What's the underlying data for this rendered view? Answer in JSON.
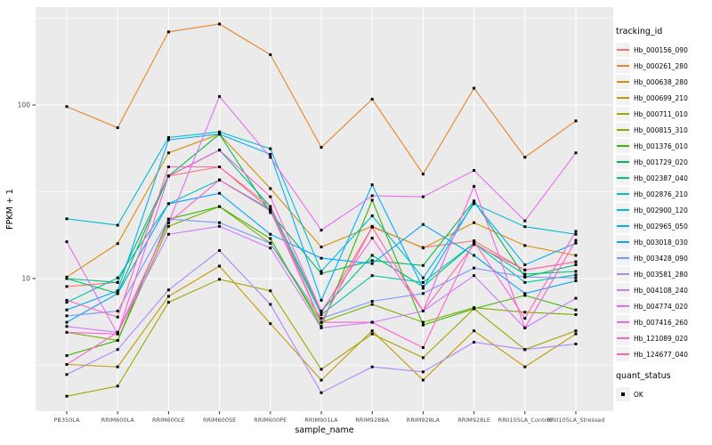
{
  "figure": {
    "background": "#FFFFFF",
    "panel_background": "#EBEBEB",
    "grid_color": "#FFFFFF",
    "tick_color": "#333333",
    "tick_label_color": "#4D4D4D",
    "axis_title_color": "#000000",
    "point_color": "#000000"
  },
  "chart_data": {
    "type": "line",
    "title": "",
    "xlabel": "sample_name",
    "ylabel": "FPKM + 1",
    "y_scale": "log10",
    "ylim": [
      1.72,
      366
    ],
    "y_major_ticks": [
      100,
      10
    ],
    "y_minor_gridlines": [
      316,
      31.6,
      3.16
    ],
    "grid": true,
    "legend_position": "right",
    "point_shape": "black-square",
    "categories": [
      "PB350LA",
      "RRIM600LA",
      "RRIM600LE",
      "RRIM600SE",
      "RRIM600PE",
      "RRIM901LA",
      "RRIM928BA",
      "RRIM928LA",
      "RRIM928LE",
      "RRII105LA_Control",
      "RRII105LA_Stressed"
    ],
    "legend_titles": {
      "tracking": "tracking_id",
      "quant": "quant_status"
    },
    "quant_items": [
      {
        "label": "OK",
        "color": "#000000"
      }
    ],
    "series": [
      {
        "name": "Hb_000156_090",
        "color": "#F8766D",
        "values": [
          9.0,
          9.5,
          39,
          44,
          25,
          6.3,
          19.8,
          15.1,
          16.5,
          11.2,
          12.5
        ]
      },
      {
        "name": "Hb_000261_280",
        "color": "#E88526",
        "values": [
          98,
          74,
          264,
          293,
          195,
          57,
          108,
          40,
          125,
          50,
          81
        ]
      },
      {
        "name": "Hb_000638_280",
        "color": "#D89000",
        "values": [
          10.2,
          15.9,
          53,
          68,
          33,
          15.2,
          20,
          15.0,
          21,
          15.5,
          13.6
        ]
      },
      {
        "name": "Hb_000699_210",
        "color": "#C49A00",
        "values": [
          3.2,
          3.1,
          7.9,
          11.8,
          5.5,
          2.6,
          5.0,
          2.6,
          5.0,
          3.1,
          4.8
        ]
      },
      {
        "name": "Hb_000711_010",
        "color": "#A3A500",
        "values": [
          2.1,
          2.4,
          7.3,
          9.9,
          8.5,
          3.0,
          4.8,
          3.5,
          6.7,
          3.9,
          5.0
        ]
      },
      {
        "name": "Hb_000815_310",
        "color": "#7CAE00",
        "values": [
          4.9,
          4.4,
          20,
          26,
          16,
          5.6,
          7.1,
          5.6,
          6.8,
          6.4,
          6.2
        ]
      },
      {
        "name": "Hb_001376_010",
        "color": "#39B600",
        "values": [
          3.6,
          4.4,
          22,
          26,
          17,
          5.3,
          28.3,
          5.4,
          6.7,
          8.0,
          6.6
        ]
      },
      {
        "name": "Hb_001729_020",
        "color": "#00BB4E",
        "values": [
          10.0,
          8.2,
          39,
          68,
          24,
          10.7,
          12.7,
          11.9,
          28,
          10.2,
          12.0
        ]
      },
      {
        "name": "Hb_002387_040",
        "color": "#00C087",
        "values": [
          10.0,
          9.5,
          39,
          55,
          26,
          6.5,
          13.6,
          9.0,
          16,
          10.6,
          11.0
        ]
      },
      {
        "name": "Hb_002876_210",
        "color": "#00C0AF",
        "values": [
          7.3,
          10.1,
          27,
          37,
          25,
          6.2,
          10.4,
          9.5,
          16,
          9.5,
          10.5
        ]
      },
      {
        "name": "Hb_002900_120",
        "color": "#00BCD8",
        "values": [
          22.1,
          20.3,
          65,
          70,
          56,
          11.0,
          23.0,
          10.1,
          27,
          19.9,
          18.0
        ]
      },
      {
        "name": "Hb_002965_050",
        "color": "#00B0F6",
        "values": [
          6.6,
          8.5,
          63,
          68,
          52,
          7.5,
          34.7,
          8.8,
          27.6,
          12.0,
          16.0
        ]
      },
      {
        "name": "Hb_003018_030",
        "color": "#00A5FF",
        "values": [
          5.6,
          8.2,
          27,
          31,
          18,
          13.1,
          12.2,
          20.5,
          13.6,
          8.2,
          9.7
        ]
      },
      {
        "name": "Hb_003428_090",
        "color": "#7997FF",
        "values": [
          6.1,
          6.5,
          22,
          21,
          16,
          5.9,
          7.4,
          8.2,
          11.5,
          10.2,
          10.1
        ]
      },
      {
        "name": "Hb_003581_280",
        "color": "#AC88FF",
        "values": [
          2.8,
          3.9,
          8.6,
          14.5,
          7.1,
          2.2,
          3.1,
          2.9,
          4.3,
          3.9,
          4.2
        ]
      },
      {
        "name": "Hb_004108_240",
        "color": "#CF78FF",
        "values": [
          5.3,
          4.9,
          18,
          20,
          15,
          5.2,
          5.6,
          6.5,
          10.4,
          5.2,
          7.7
        ]
      },
      {
        "name": "Hb_004774_020",
        "color": "#E76BF3",
        "values": [
          16.3,
          4.8,
          21,
          112,
          50,
          19,
          30,
          29.6,
          42,
          21.5,
          53
        ]
      },
      {
        "name": "Hb_007416_260",
        "color": "#F763E0",
        "values": [
          4.9,
          4.8,
          39,
          55,
          29.6,
          6.5,
          17.1,
          6.5,
          34,
          5.2,
          16.6
        ]
      },
      {
        "name": "Hb_121089_020",
        "color": "#FF61C9",
        "values": [
          3.2,
          4.9,
          21,
          37,
          24.6,
          5.6,
          5.6,
          4.0,
          16.4,
          5.9,
          18.7
        ]
      },
      {
        "name": "Hb_124677_040",
        "color": "#FF65AE",
        "values": [
          7.5,
          6.0,
          44,
          44,
          26,
          5.6,
          19.8,
          6.5,
          15.7,
          11.2,
          12.5
        ]
      }
    ]
  }
}
